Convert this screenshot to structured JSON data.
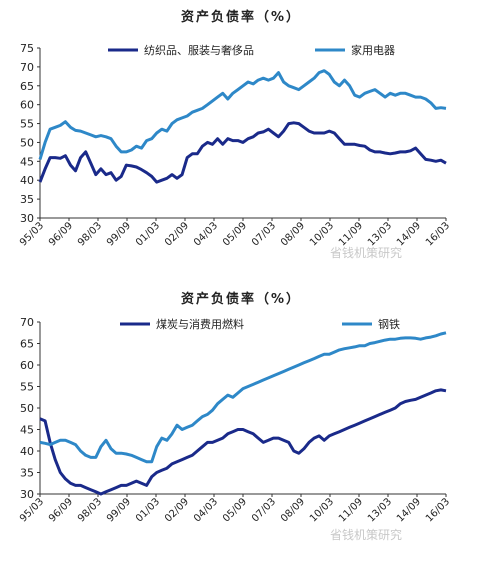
{
  "watermark": "省钱机策研究",
  "chart_data": [
    {
      "type": "line",
      "title": "资产负债率（%）",
      "ylim": [
        30,
        75
      ],
      "yticks": [
        30,
        35,
        40,
        45,
        50,
        55,
        60,
        65,
        70,
        75
      ],
      "xtick_labels": [
        "95/03",
        "96/09",
        "98/03",
        "99/09",
        "01/03",
        "02/09",
        "04/03",
        "05/09",
        "07/03",
        "08/09",
        "10/03",
        "11/09",
        "13/03",
        "14/09",
        "16/03"
      ],
      "legend_position": "top",
      "grid": false,
      "series": [
        {
          "name": "纺织品、服装与奢侈品",
          "color": "#1a2a8a",
          "values": [
            39.5,
            43,
            46,
            46,
            45.8,
            46.5,
            44,
            42.5,
            46,
            47.5,
            44.5,
            41.5,
            43,
            41.5,
            42,
            40,
            41,
            44,
            43.8,
            43.5,
            42.8,
            42,
            41,
            39.5,
            40,
            40.5,
            41.5,
            40.5,
            41.5,
            46,
            47,
            47,
            49,
            50,
            49.5,
            51,
            49.5,
            51,
            50.5,
            50.5,
            50,
            51,
            51.5,
            52.5,
            52.8,
            53.5,
            52.5,
            51.5,
            53,
            55,
            55.2,
            55,
            54,
            53,
            52.5,
            52.5,
            52.5,
            53,
            52.5,
            51,
            49.5,
            49.5,
            49.5,
            49.2,
            49,
            48,
            47.5,
            47.5,
            47.2,
            47,
            47.2,
            47.5,
            47.5,
            47.8,
            48.5,
            47,
            45.5,
            45.3,
            45,
            45.3,
            44.5
          ]
        },
        {
          "name": "家用电器",
          "color": "#2e88c8",
          "values": [
            45.5,
            50,
            53.5,
            54,
            54.5,
            55.5,
            54,
            53.2,
            53,
            52.5,
            52,
            51.5,
            51.8,
            51.5,
            51,
            49,
            47.5,
            47.5,
            48,
            49,
            48.5,
            50.5,
            51,
            52.5,
            53.5,
            53,
            55,
            56,
            56.5,
            57,
            58,
            58.5,
            59,
            60,
            61,
            62,
            63,
            61.5,
            63,
            64,
            65,
            66,
            65.5,
            66.5,
            67,
            66.5,
            67,
            68.5,
            66,
            65,
            64.5,
            64,
            65,
            66,
            67,
            68.5,
            69,
            68,
            66,
            65,
            66.5,
            65,
            62.5,
            62,
            63,
            63.5,
            64,
            63,
            62,
            63,
            62.5,
            63,
            63,
            62.5,
            62,
            62,
            61.5,
            60.5,
            59,
            59.2,
            59
          ]
        }
      ]
    },
    {
      "type": "line",
      "title": "资产负债率（%）",
      "ylim": [
        30,
        70
      ],
      "yticks": [
        30,
        35,
        40,
        45,
        50,
        55,
        60,
        65,
        70
      ],
      "xtick_labels": [
        "95/03",
        "96/09",
        "98/03",
        "99/09",
        "01/03",
        "02/09",
        "04/03",
        "05/09",
        "07/03",
        "08/09",
        "10/03",
        "11/09",
        "13/03",
        "14/09",
        "16/03"
      ],
      "legend_position": "top",
      "grid": false,
      "series": [
        {
          "name": "煤炭与消费用燃料",
          "color": "#1a2a8a",
          "values": [
            47.5,
            47,
            42,
            38,
            35,
            33.5,
            32.5,
            32,
            32,
            31.5,
            31,
            30.5,
            30,
            30.5,
            31,
            31.5,
            32,
            32,
            32.5,
            33,
            32.5,
            32,
            34,
            35,
            35.5,
            36,
            37,
            37.5,
            38,
            38.5,
            39,
            40,
            41,
            42,
            42,
            42.5,
            43,
            44,
            44.5,
            45,
            45,
            44.5,
            44,
            43,
            42,
            42.5,
            43,
            43,
            42.5,
            42,
            40,
            39.5,
            40.5,
            42,
            43,
            43.5,
            42.5,
            43.5,
            44,
            44.5,
            45,
            45.5,
            46,
            46.5,
            47,
            47.5,
            48,
            48.5,
            49,
            49.5,
            50,
            51,
            51.5,
            51.8,
            52,
            52.5,
            53,
            53.5,
            54,
            54.2,
            54
          ]
        },
        {
          "name": "钢铁",
          "color": "#2e88c8",
          "values": [
            42,
            41.8,
            41.5,
            42,
            42.5,
            42.5,
            42,
            41.5,
            40,
            39,
            38.5,
            38.5,
            41,
            42.5,
            40.5,
            39.5,
            39.5,
            39.3,
            39,
            38.5,
            38,
            37.5,
            37.5,
            41,
            43,
            42.5,
            44,
            46,
            45,
            45.5,
            46,
            47,
            48,
            48.5,
            49.5,
            51,
            52,
            53,
            52.5,
            53.5,
            54.5,
            55,
            55.5,
            56,
            56.5,
            57,
            57.5,
            58,
            58.5,
            59,
            59.5,
            60,
            60.5,
            61,
            61.5,
            62,
            62.5,
            62.5,
            63,
            63.5,
            63.8,
            64,
            64.2,
            64.5,
            64.5,
            65,
            65.2,
            65.5,
            65.8,
            66,
            66,
            66.2,
            66.3,
            66.3,
            66.2,
            66,
            66.3,
            66.5,
            66.8,
            67.2,
            67.5
          ]
        }
      ]
    }
  ]
}
